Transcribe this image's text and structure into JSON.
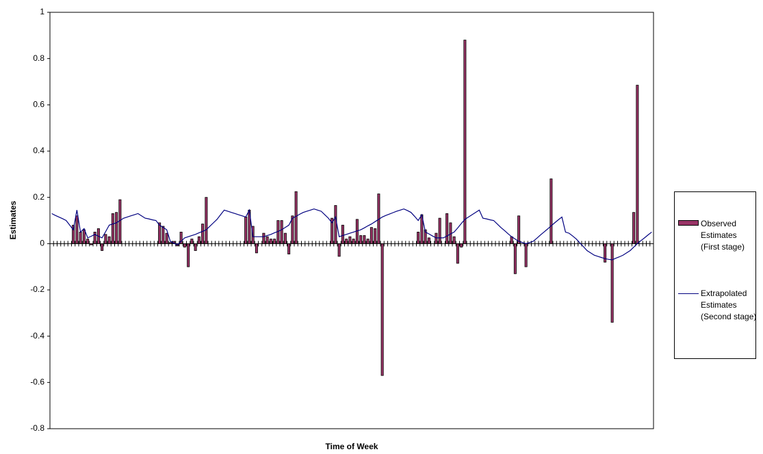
{
  "chart_data": {
    "type": "bar",
    "x_label": "Time of Week",
    "y_label": "Estimates",
    "categories": [
      null,
      null,
      null,
      null,
      null,
      null,
      null,
      null,
      null,
      null,
      null,
      null,
      null,
      null,
      null,
      null,
      null,
      null,
      null,
      null,
      null,
      null,
      null,
      null,
      null,
      null,
      null,
      null,
      null,
      null,
      null,
      null,
      null,
      null,
      null,
      null,
      null,
      null,
      null,
      null,
      null,
      null,
      null,
      null,
      null,
      null,
      null,
      null,
      null,
      null,
      null,
      null,
      null,
      null,
      null,
      null,
      null,
      null,
      null,
      null,
      null,
      null,
      null,
      null,
      null,
      null,
      null,
      null,
      null,
      null,
      null,
      null,
      null,
      null,
      null,
      null,
      null,
      null,
      null,
      null,
      null,
      null,
      null,
      null,
      null,
      null,
      null,
      null,
      null,
      null,
      null,
      null,
      null,
      null,
      null,
      null,
      null,
      null,
      null,
      null,
      null,
      null,
      null,
      null,
      null,
      null,
      null,
      null,
      null,
      null,
      null,
      null,
      null,
      null,
      null,
      null,
      null,
      null,
      null,
      null,
      null,
      null,
      null,
      null,
      null,
      null,
      null,
      null,
      null,
      null,
      null,
      null,
      null,
      null,
      null,
      null,
      null,
      null,
      null,
      null,
      null,
      null,
      null,
      null,
      null,
      null,
      null,
      null,
      null,
      null,
      null,
      null,
      null,
      null,
      null,
      null,
      null,
      null,
      null,
      null,
      null,
      null,
      null,
      null,
      null,
      null,
      null,
      null
    ],
    "series": [
      {
        "name": "Observed Estimates (First stage)",
        "type": "bar",
        "color": "#993366",
        "values": [
          null,
          null,
          null,
          null,
          null,
          null,
          0.08,
          0.12,
          0.05,
          0.06,
          0.02,
          -0.005,
          0.05,
          0.065,
          -0.03,
          0.04,
          0.03,
          0.13,
          0.135,
          0.19,
          null,
          null,
          null,
          null,
          null,
          null,
          null,
          null,
          null,
          null,
          0.09,
          0.075,
          0.045,
          0.005,
          0.01,
          -0.01,
          0.05,
          -0.015,
          -0.1,
          0.02,
          -0.03,
          0.03,
          0.085,
          0.2,
          null,
          null,
          null,
          null,
          null,
          null,
          null,
          null,
          null,
          null,
          0.115,
          0.145,
          0.075,
          -0.04,
          null,
          0.045,
          0.03,
          0.02,
          0.02,
          0.1,
          0.1,
          0.045,
          -0.045,
          0.12,
          0.225,
          null,
          null,
          null,
          null,
          null,
          null,
          null,
          null,
          null,
          0.11,
          0.165,
          -0.055,
          0.08,
          0.02,
          0.03,
          0.02,
          0.105,
          0.035,
          0.035,
          0.02,
          0.07,
          0.065,
          0.215,
          -0.57,
          null,
          null,
          null,
          null,
          null,
          null,
          null,
          null,
          null,
          0.05,
          0.125,
          0.06,
          0.025,
          null,
          0.045,
          0.11,
          null,
          0.13,
          0.09,
          0.03,
          -0.085,
          -0.015,
          0.88,
          null,
          null,
          null,
          null,
          null,
          null,
          null,
          null,
          null,
          null,
          null,
          null,
          0.03,
          -0.13,
          0.12,
          null,
          -0.1,
          null,
          null,
          null,
          null,
          null,
          null,
          0.28,
          null,
          null,
          null,
          null,
          null,
          null,
          null,
          null,
          null,
          null,
          null,
          null,
          null,
          null,
          -0.08,
          null,
          -0.34,
          null,
          null,
          null,
          null,
          null,
          0.135,
          0.685,
          null,
          null,
          null,
          null
        ]
      },
      {
        "name": "Extrapolated Estimates (Second stage)",
        "type": "line",
        "color": "#000080",
        "values": [
          0.13,
          0.122,
          0.115,
          0.108,
          0.1,
          0.08,
          0.06,
          0.145,
          0.05,
          0.065,
          0.025,
          0.032,
          0.04,
          0.032,
          0.025,
          0.052,
          0.08,
          0.085,
          0.09,
          0.1,
          0.11,
          0.115,
          0.12,
          0.125,
          0.13,
          0.12,
          0.11,
          0.107,
          0.103,
          0.1,
          0.08,
          0.07,
          0.06,
          0.01,
          0.002,
          -0.005,
          0.01,
          0.025,
          0.03,
          0.035,
          0.04,
          0.047,
          0.053,
          0.06,
          0.075,
          0.09,
          0.105,
          0.125,
          0.145,
          0.14,
          0.135,
          0.13,
          0.125,
          0.12,
          0.115,
          0.145,
          0.03,
          0.03,
          0.03,
          0.03,
          0.035,
          0.04,
          0.047,
          0.053,
          0.06,
          0.07,
          0.08,
          0.11,
          0.118,
          0.127,
          0.135,
          0.14,
          0.145,
          0.15,
          0.145,
          0.14,
          0.125,
          0.11,
          0.09,
          0.115,
          0.03,
          0.035,
          0.04,
          0.045,
          0.05,
          0.055,
          0.06,
          0.068,
          0.077,
          0.085,
          0.095,
          0.105,
          0.115,
          0.122,
          0.128,
          0.134,
          0.14,
          0.145,
          0.15,
          0.143,
          0.135,
          0.118,
          0.1,
          0.125,
          0.05,
          0.042,
          0.033,
          0.025,
          0.025,
          0.025,
          0.033,
          0.042,
          0.05,
          0.068,
          0.087,
          0.105,
          0.115,
          0.125,
          0.135,
          0.145,
          0.11,
          0.107,
          0.103,
          0.1,
          0.085,
          0.07,
          0.057,
          0.043,
          0.03,
          0.02,
          0.01,
          0.005,
          0,
          0.005,
          0.01,
          0.023,
          0.037,
          0.05,
          0.063,
          0.077,
          0.09,
          0.103,
          0.115,
          0.05,
          0.045,
          0.033,
          0.02,
          0.003,
          -0.013,
          -0.03,
          -0.04,
          -0.05,
          -0.055,
          -0.06,
          -0.065,
          -0.068,
          -0.07,
          -0.063,
          -0.057,
          -0.05,
          -0.04,
          -0.03,
          -0.015,
          0,
          0.013,
          0.025,
          0.038,
          0.05
        ]
      }
    ],
    "ylim": [
      -0.8,
      1
    ],
    "yticks": [
      -0.8,
      -0.6,
      -0.4,
      -0.2,
      0,
      0.2,
      0.4,
      0.6,
      0.8,
      1
    ],
    "grid": false,
    "legend": "right"
  }
}
